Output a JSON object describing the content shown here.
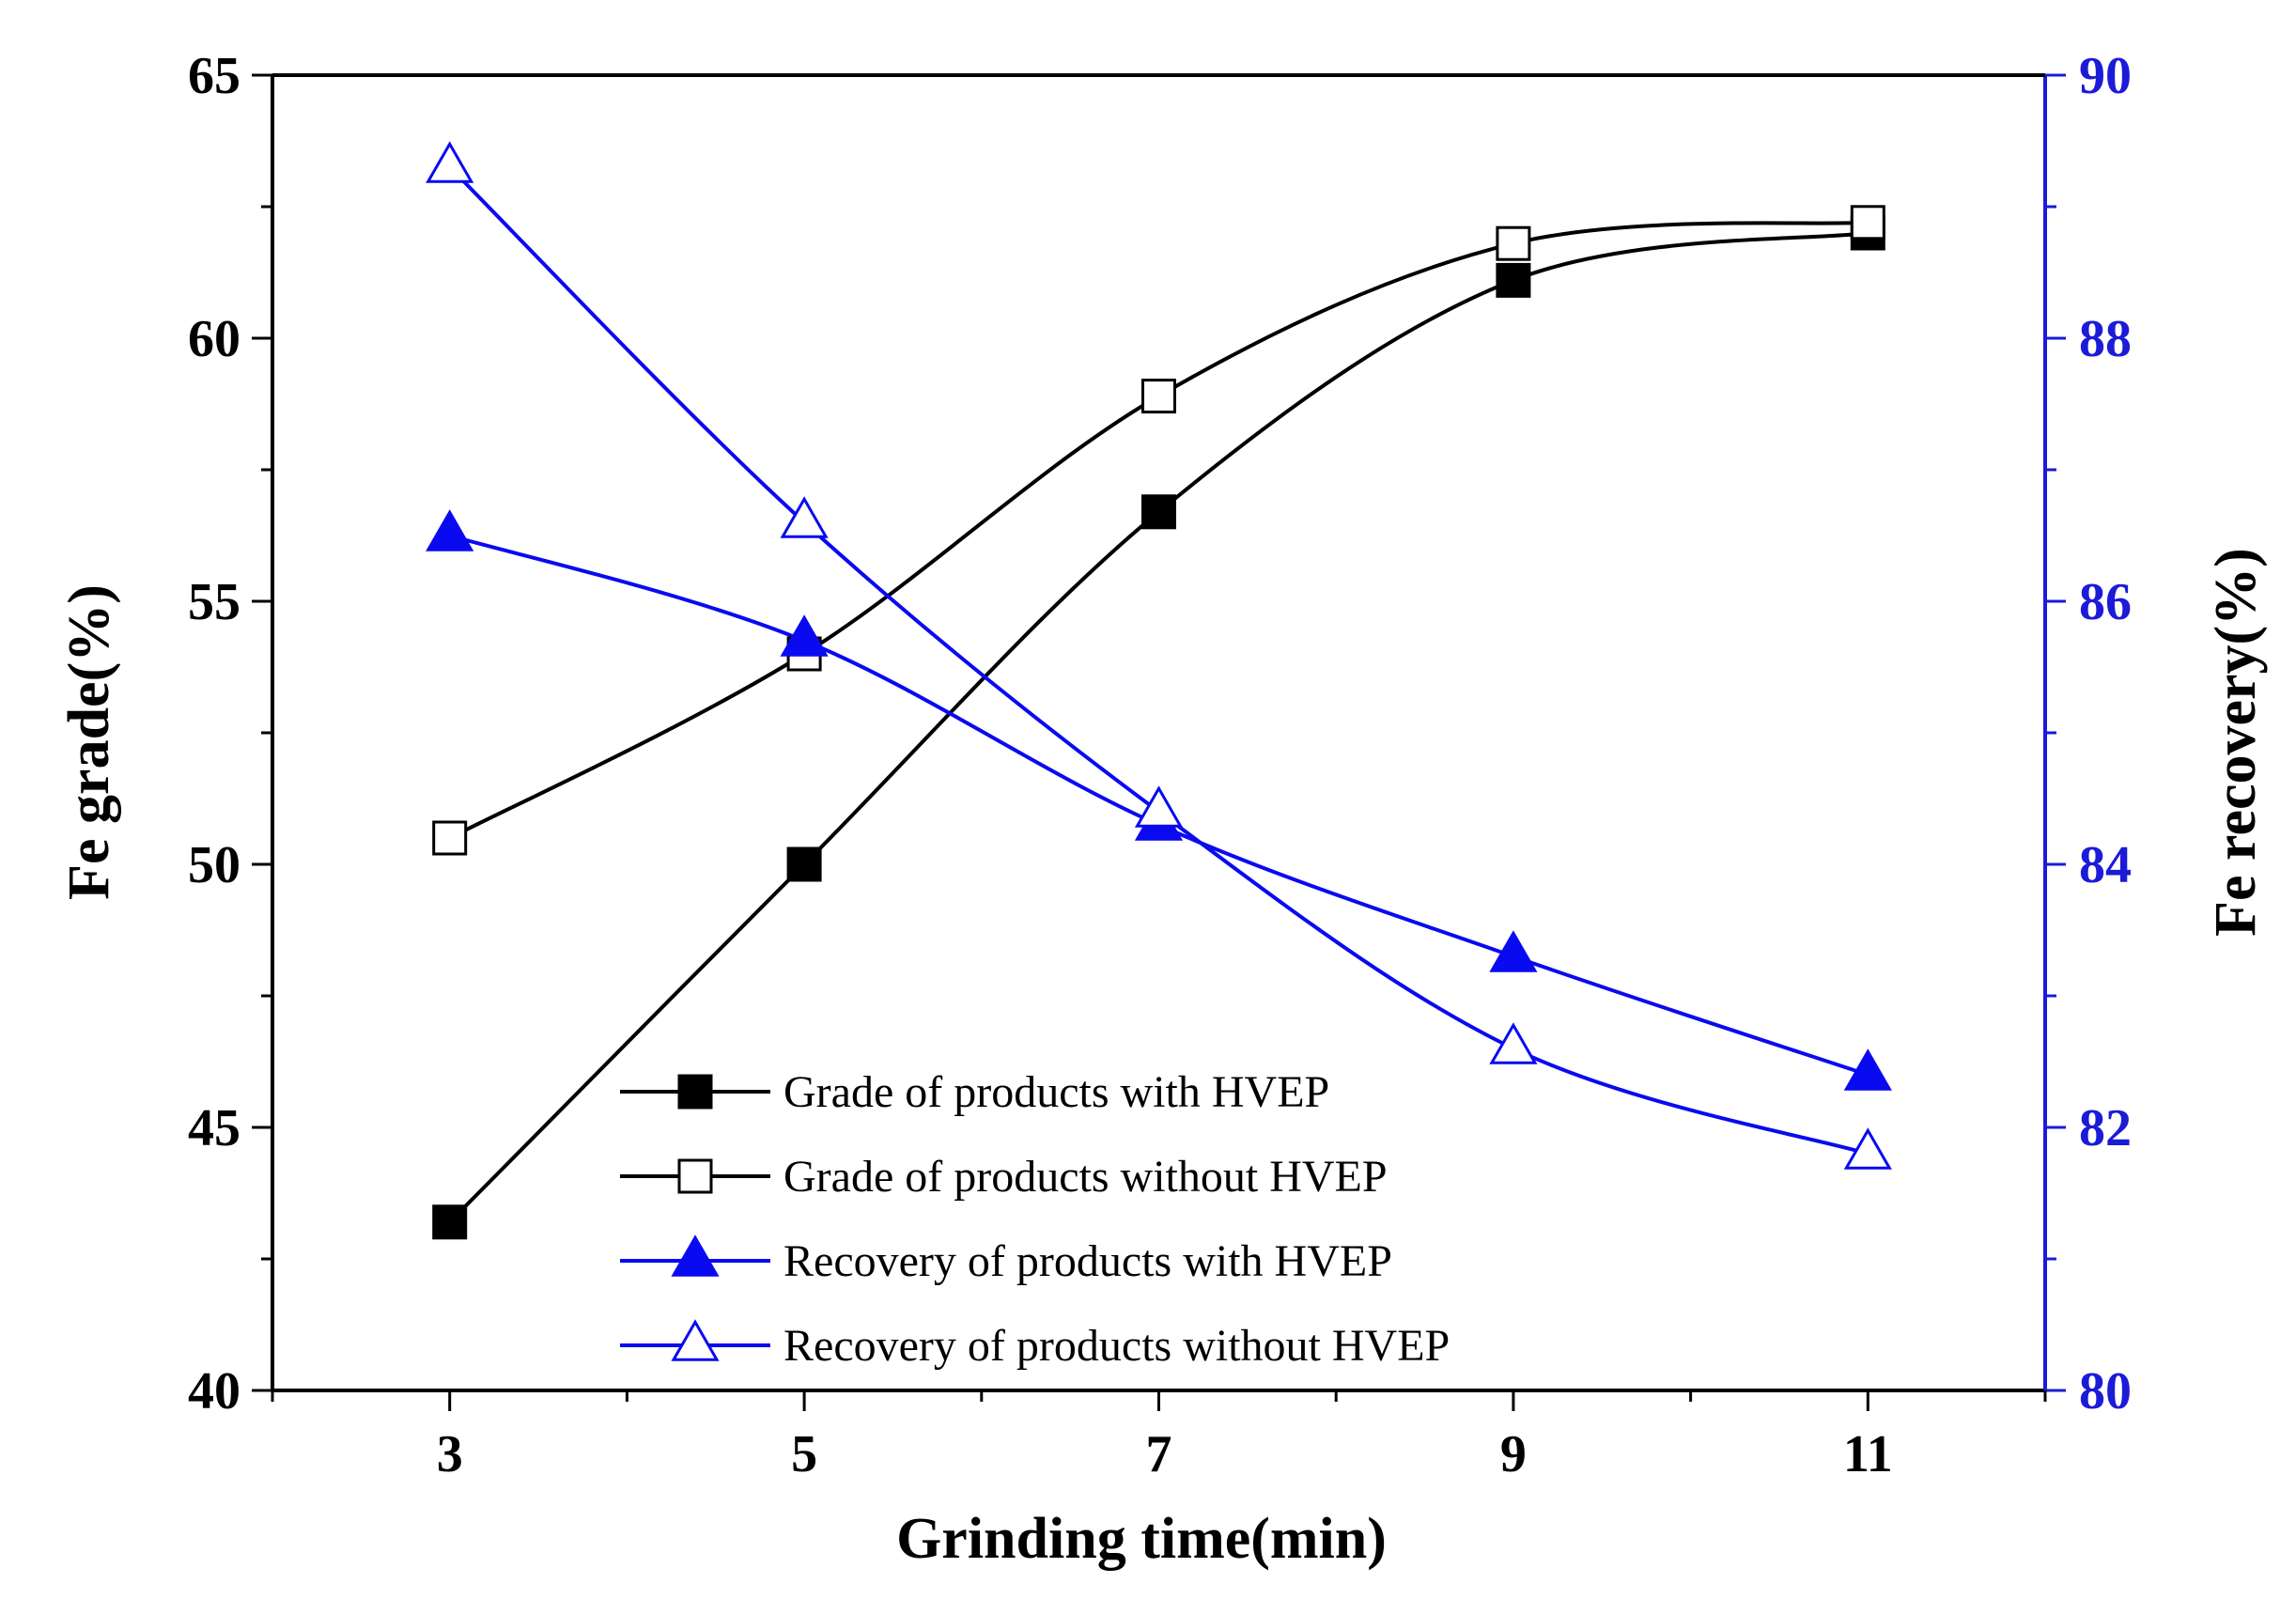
{
  "chart_data": {
    "type": "line",
    "title": "",
    "xlabel": "Grinding time(min)",
    "ylabel_left": "Fe grade(%)",
    "ylabel_right": "Fe recovery(%)",
    "x": [
      3,
      5,
      7,
      9,
      11
    ],
    "x_ticks": [
      "3",
      "5",
      "7",
      "9",
      "11"
    ],
    "xlim": [
      2,
      12
    ],
    "ylim_left": [
      40,
      65
    ],
    "ylim_right": [
      80,
      90
    ],
    "left_ticks": [
      "40",
      "45",
      "50",
      "55",
      "60",
      "65"
    ],
    "right_ticks": [
      "80",
      "82",
      "84",
      "86",
      "88",
      "90"
    ],
    "grid": false,
    "legend_position": "bottom-center",
    "series": [
      {
        "name": "Grade of products with HVEP",
        "axis": "left",
        "marker": "filled-square",
        "color": "#000000",
        "values": [
          43.2,
          50.0,
          56.7,
          61.1,
          62.0
        ]
      },
      {
        "name": "Grade of products without HVEP",
        "axis": "left",
        "marker": "open-square",
        "color": "#000000",
        "values": [
          50.5,
          54.0,
          58.9,
          61.8,
          62.2
        ]
      },
      {
        "name": "Recovery of products with HVEP",
        "axis": "right",
        "marker": "filled-triangle",
        "color": "#0a0af0",
        "values": [
          86.5,
          85.7,
          84.3,
          83.3,
          82.4
        ]
      },
      {
        "name": "Recovery of products without HVEP",
        "axis": "right",
        "marker": "open-triangle",
        "color": "#0a0af0",
        "values": [
          89.3,
          86.6,
          84.4,
          82.6,
          81.8
        ]
      }
    ],
    "axis_colors": {
      "left": "#000000",
      "right": "#1b1bd8"
    }
  }
}
